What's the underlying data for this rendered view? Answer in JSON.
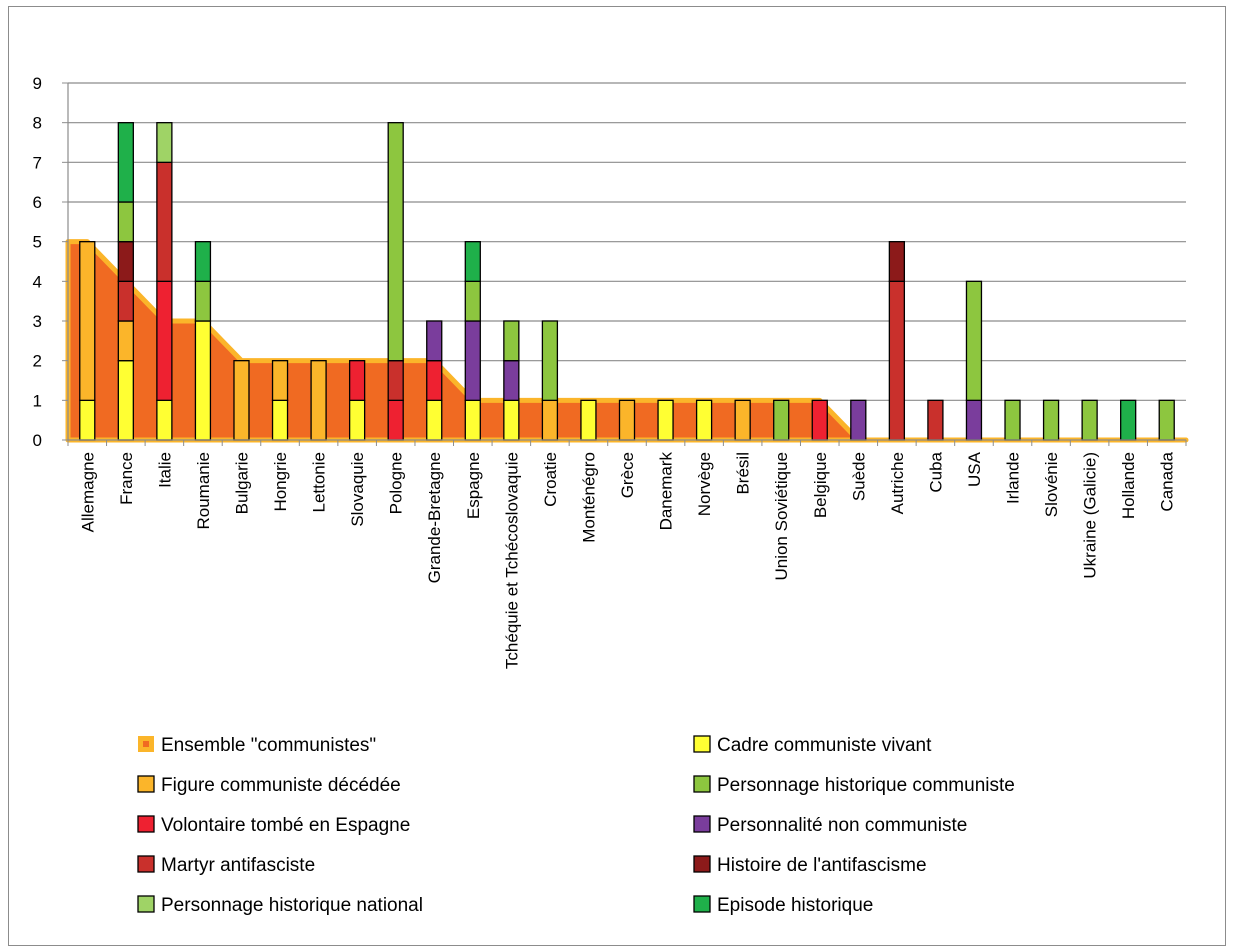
{
  "chart_data": {
    "type": "bar",
    "stacked": true,
    "title": "",
    "xlabel": "",
    "ylabel": "",
    "ylim": [
      0,
      9
    ],
    "yticks": [
      0,
      1,
      2,
      3,
      4,
      5,
      6,
      7,
      8,
      9
    ],
    "grid": true,
    "legend_position": "bottom",
    "categories": [
      "Allemagne",
      "France",
      "Italie",
      "Roumanie",
      "Bulgarie",
      "Hongrie",
      "Lettonie",
      "Slovaquie",
      "Pologne",
      "Grande-Bretagne",
      "Espagne",
      "Tchéquie et Tchécoslovaquie",
      "Croatie",
      "Monténégro",
      "Grèce",
      "Danemark",
      "Norvège",
      "Brésil",
      "Union Soviétique",
      "Belgique",
      "Suède",
      "Autriche",
      "Cuba",
      "USA",
      "Irlande",
      "Slovénie",
      "Ukraine (Galicie)",
      "Hollande",
      "Canada"
    ],
    "area_series": {
      "name": "Ensemble \"communistes\"",
      "fill": "#f06a22",
      "edge": "#fbb52a",
      "values": [
        5,
        4,
        3,
        3,
        2,
        2,
        2,
        2,
        2,
        2,
        1,
        1,
        1,
        1,
        1,
        1,
        1,
        1,
        1,
        1,
        0,
        0,
        0,
        0,
        0,
        0,
        0,
        0,
        0
      ]
    },
    "series": [
      {
        "name": "Cadre communiste vivant",
        "color": "#ffff33",
        "values": [
          1,
          2,
          1,
          3,
          0,
          1,
          0,
          1,
          0,
          1,
          1,
          1,
          0,
          1,
          0,
          1,
          1,
          0,
          0,
          0,
          0,
          0,
          0,
          0,
          0,
          0,
          0,
          0,
          0
        ]
      },
      {
        "name": "Figure communiste décédée",
        "color": "#fbb52a",
        "values": [
          4,
          1,
          0,
          0,
          2,
          1,
          2,
          0,
          0,
          0,
          0,
          0,
          1,
          0,
          1,
          0,
          0,
          1,
          0,
          0,
          0,
          0,
          0,
          0,
          0,
          0,
          0,
          0,
          0
        ]
      },
      {
        "name": "Volontaire tombé  en Espagne",
        "color": "#ee2131",
        "values": [
          0,
          0,
          3,
          0,
          0,
          0,
          0,
          1,
          1,
          1,
          0,
          0,
          0,
          0,
          0,
          0,
          0,
          0,
          0,
          1,
          0,
          0,
          0,
          0,
          0,
          0,
          0,
          0,
          0
        ]
      },
      {
        "name": "Personnalité non communiste",
        "color": "#7a3d9c",
        "values": [
          0,
          0,
          0,
          0,
          0,
          0,
          0,
          0,
          0,
          1,
          2,
          1,
          0,
          0,
          0,
          0,
          0,
          0,
          0,
          0,
          1,
          0,
          0,
          1,
          0,
          0,
          0,
          0,
          0
        ]
      },
      {
        "name": "Martyr antifasciste",
        "color": "#c9302c",
        "values": [
          0,
          1,
          3,
          0,
          0,
          0,
          0,
          0,
          1,
          0,
          0,
          0,
          0,
          0,
          0,
          0,
          0,
          0,
          0,
          0,
          0,
          4,
          1,
          0,
          0,
          0,
          0,
          0,
          0
        ]
      },
      {
        "name": "Histoire de l'antifascisme",
        "color": "#8c1a1a",
        "values": [
          0,
          1,
          0,
          0,
          0,
          0,
          0,
          0,
          0,
          0,
          0,
          0,
          0,
          0,
          0,
          0,
          0,
          0,
          0,
          0,
          0,
          1,
          0,
          0,
          0,
          0,
          0,
          0,
          0
        ]
      },
      {
        "name": "Personnage historique communiste",
        "color": "#8dc63f",
        "values": [
          0,
          1,
          0,
          1,
          0,
          0,
          0,
          0,
          6,
          0,
          1,
          1,
          2,
          0,
          0,
          0,
          0,
          0,
          1,
          0,
          0,
          0,
          0,
          3,
          1,
          1,
          1,
          0,
          1
        ]
      },
      {
        "name": "Personnage historique national",
        "color": "#9fd366",
        "values": [
          0,
          0,
          1,
          0,
          0,
          0,
          0,
          0,
          0,
          0,
          0,
          0,
          0,
          0,
          0,
          0,
          0,
          0,
          0,
          0,
          0,
          0,
          0,
          0,
          0,
          0,
          0,
          0,
          0
        ]
      },
      {
        "name": "Episode historique",
        "color": "#1fb04a",
        "values": [
          0,
          2,
          0,
          1,
          0,
          0,
          0,
          0,
          0,
          0,
          1,
          0,
          0,
          0,
          0,
          0,
          0,
          0,
          0,
          0,
          0,
          0,
          0,
          0,
          0,
          0,
          0,
          1,
          0
        ]
      }
    ],
    "legend": [
      {
        "label": "Ensemble \"communistes\"",
        "color": "#f06a22",
        "edge": "#fbb52a",
        "kind": "area"
      },
      {
        "label": "Cadre communiste vivant",
        "color": "#ffff33",
        "kind": "bar"
      },
      {
        "label": "Figure communiste décédée",
        "color": "#fbb52a",
        "kind": "bar"
      },
      {
        "label": "Personnage historique communiste",
        "color": "#8dc63f",
        "kind": "bar"
      },
      {
        "label": "Volontaire tombé  en Espagne",
        "color": "#ee2131",
        "kind": "bar"
      },
      {
        "label": "Personnalité non communiste",
        "color": "#7a3d9c",
        "kind": "bar"
      },
      {
        "label": "Martyr antifasciste",
        "color": "#c9302c",
        "kind": "bar"
      },
      {
        "label": "Histoire de l'antifascisme",
        "color": "#8c1a1a",
        "kind": "bar"
      },
      {
        "label": "Personnage historique national",
        "color": "#9fd366",
        "kind": "bar"
      },
      {
        "label": "Episode historique",
        "color": "#1fb04a",
        "kind": "bar"
      }
    ]
  }
}
